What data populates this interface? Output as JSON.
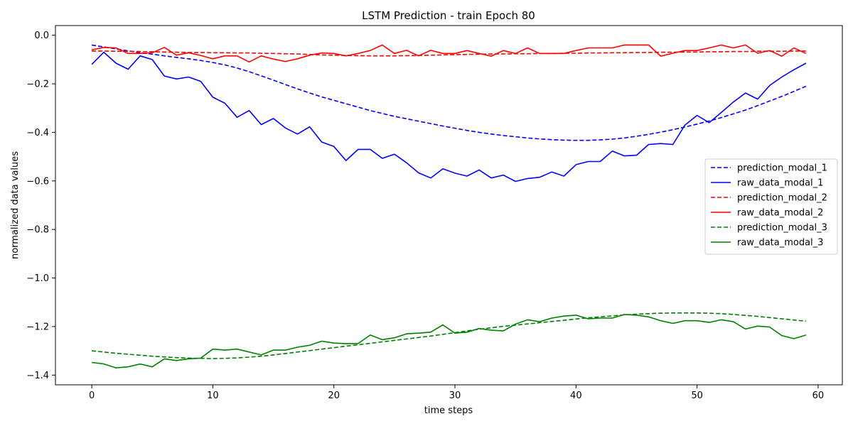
{
  "chart_data": {
    "type": "line",
    "title": "LSTM Prediction - train Epoch 80",
    "xlabel": "time steps",
    "ylabel": "normalized data values",
    "xlim": [
      -3,
      62
    ],
    "ylim": [
      -1.44,
      0.04
    ],
    "x_ticks": [
      0,
      10,
      20,
      30,
      40,
      50,
      60
    ],
    "y_ticks": [
      0.0,
      -0.2,
      -0.4,
      -0.6,
      -0.8,
      -1.0,
      -1.2,
      -1.4
    ],
    "x_tick_labels": [
      "0",
      "10",
      "20",
      "30",
      "40",
      "50",
      "60"
    ],
    "y_tick_labels": [
      "0.0",
      "−0.2",
      "−0.4",
      "−0.6",
      "−0.8",
      "−1.0",
      "−1.2",
      "−1.4"
    ],
    "grid": false,
    "legend_position": "center-right",
    "x": [
      0,
      1,
      2,
      3,
      4,
      5,
      6,
      7,
      8,
      9,
      10,
      11,
      12,
      13,
      14,
      15,
      16,
      17,
      18,
      19,
      20,
      21,
      22,
      23,
      24,
      25,
      26,
      27,
      28,
      29,
      30,
      31,
      32,
      33,
      34,
      35,
      36,
      37,
      38,
      39,
      40,
      41,
      42,
      43,
      44,
      45,
      46,
      47,
      48,
      49,
      50,
      51,
      52,
      53,
      54,
      55,
      56,
      57,
      58,
      59
    ],
    "series": [
      {
        "name": "prediction_modal_1",
        "color": "#0000ff",
        "style": "dashed",
        "values": [
          -0.04,
          -0.048,
          -0.056,
          -0.064,
          -0.072,
          -0.078,
          -0.085,
          -0.091,
          -0.097,
          -0.104,
          -0.112,
          -0.122,
          -0.135,
          -0.15,
          -0.167,
          -0.185,
          -0.203,
          -0.221,
          -0.238,
          -0.254,
          -0.268,
          -0.282,
          -0.296,
          -0.31,
          -0.322,
          -0.334,
          -0.344,
          -0.354,
          -0.364,
          -0.374,
          -0.383,
          -0.392,
          -0.4,
          -0.407,
          -0.413,
          -0.418,
          -0.423,
          -0.427,
          -0.43,
          -0.432,
          -0.433,
          -0.433,
          -0.431,
          -0.428,
          -0.423,
          -0.416,
          -0.408,
          -0.399,
          -0.389,
          -0.378,
          -0.366,
          -0.353,
          -0.339,
          -0.324,
          -0.308,
          -0.29,
          -0.271,
          -0.252,
          -0.231,
          -0.21
        ]
      },
      {
        "name": "raw_data_modal_1",
        "color": "#0000ff",
        "style": "solid",
        "values": [
          -0.12,
          -0.07,
          -0.115,
          -0.14,
          -0.085,
          -0.1,
          -0.168,
          -0.18,
          -0.172,
          -0.19,
          -0.255,
          -0.28,
          -0.338,
          -0.31,
          -0.368,
          -0.343,
          -0.382,
          -0.407,
          -0.377,
          -0.44,
          -0.458,
          -0.516,
          -0.47,
          -0.47,
          -0.507,
          -0.49,
          -0.525,
          -0.567,
          -0.588,
          -0.55,
          -0.568,
          -0.58,
          -0.555,
          -0.588,
          -0.576,
          -0.602,
          -0.59,
          -0.585,
          -0.563,
          -0.58,
          -0.533,
          -0.52,
          -0.52,
          -0.477,
          -0.497,
          -0.494,
          -0.45,
          -0.446,
          -0.45,
          -0.37,
          -0.33,
          -0.36,
          -0.318,
          -0.275,
          -0.238,
          -0.263,
          -0.207,
          -0.172,
          -0.142,
          -0.115
        ]
      },
      {
        "name": "prediction_modal_2",
        "color": "#ff0000",
        "style": "dashed",
        "values": [
          -0.065,
          -0.065,
          -0.066,
          -0.066,
          -0.067,
          -0.068,
          -0.069,
          -0.07,
          -0.071,
          -0.071,
          -0.072,
          -0.072,
          -0.073,
          -0.073,
          -0.074,
          -0.075,
          -0.076,
          -0.077,
          -0.079,
          -0.081,
          -0.082,
          -0.083,
          -0.084,
          -0.085,
          -0.085,
          -0.085,
          -0.084,
          -0.083,
          -0.082,
          -0.081,
          -0.08,
          -0.079,
          -0.078,
          -0.077,
          -0.077,
          -0.076,
          -0.076,
          -0.075,
          -0.075,
          -0.074,
          -0.074,
          -0.073,
          -0.073,
          -0.072,
          -0.072,
          -0.071,
          -0.071,
          -0.07,
          -0.07,
          -0.069,
          -0.069,
          -0.068,
          -0.068,
          -0.067,
          -0.067,
          -0.066,
          -0.066,
          -0.066,
          -0.065,
          -0.065
        ]
      },
      {
        "name": "raw_data_modal_2",
        "color": "#ff0000",
        "style": "solid",
        "values": [
          -0.06,
          -0.05,
          -0.052,
          -0.075,
          -0.075,
          -0.072,
          -0.05,
          -0.082,
          -0.072,
          -0.083,
          -0.097,
          -0.085,
          -0.085,
          -0.11,
          -0.085,
          -0.098,
          -0.108,
          -0.097,
          -0.082,
          -0.073,
          -0.075,
          -0.085,
          -0.075,
          -0.063,
          -0.04,
          -0.075,
          -0.062,
          -0.085,
          -0.062,
          -0.075,
          -0.075,
          -0.063,
          -0.075,
          -0.086,
          -0.063,
          -0.075,
          -0.052,
          -0.075,
          -0.075,
          -0.075,
          -0.063,
          -0.052,
          -0.052,
          -0.052,
          -0.04,
          -0.04,
          -0.04,
          -0.086,
          -0.074,
          -0.063,
          -0.063,
          -0.052,
          -0.04,
          -0.052,
          -0.04,
          -0.074,
          -0.063,
          -0.086,
          -0.052,
          -0.075
        ]
      },
      {
        "name": "prediction_modal_3",
        "color": "#008000",
        "style": "dashed",
        "values": [
          -1.3,
          -1.305,
          -1.31,
          -1.314,
          -1.318,
          -1.322,
          -1.325,
          -1.328,
          -1.33,
          -1.331,
          -1.332,
          -1.331,
          -1.329,
          -1.326,
          -1.322,
          -1.317,
          -1.311,
          -1.305,
          -1.299,
          -1.293,
          -1.287,
          -1.281,
          -1.275,
          -1.269,
          -1.263,
          -1.257,
          -1.251,
          -1.245,
          -1.239,
          -1.232,
          -1.225,
          -1.218,
          -1.211,
          -1.205,
          -1.199,
          -1.194,
          -1.189,
          -1.184,
          -1.179,
          -1.174,
          -1.169,
          -1.164,
          -1.16,
          -1.156,
          -1.152,
          -1.149,
          -1.147,
          -1.145,
          -1.144,
          -1.144,
          -1.144,
          -1.145,
          -1.147,
          -1.15,
          -1.154,
          -1.158,
          -1.163,
          -1.168,
          -1.173,
          -1.178
        ]
      },
      {
        "name": "raw_data_modal_3",
        "color": "#008000",
        "style": "solid",
        "values": [
          -1.348,
          -1.354,
          -1.37,
          -1.366,
          -1.354,
          -1.366,
          -1.333,
          -1.34,
          -1.333,
          -1.33,
          -1.293,
          -1.297,
          -1.293,
          -1.305,
          -1.317,
          -1.297,
          -1.297,
          -1.285,
          -1.277,
          -1.26,
          -1.268,
          -1.27,
          -1.27,
          -1.235,
          -1.254,
          -1.246,
          -1.23,
          -1.227,
          -1.223,
          -1.193,
          -1.227,
          -1.223,
          -1.208,
          -1.215,
          -1.218,
          -1.19,
          -1.172,
          -1.18,
          -1.165,
          -1.157,
          -1.153,
          -1.168,
          -1.165,
          -1.165,
          -1.15,
          -1.153,
          -1.16,
          -1.176,
          -1.187,
          -1.176,
          -1.176,
          -1.183,
          -1.172,
          -1.18,
          -1.21,
          -1.198,
          -1.202,
          -1.237,
          -1.25,
          -1.235
        ]
      }
    ]
  }
}
